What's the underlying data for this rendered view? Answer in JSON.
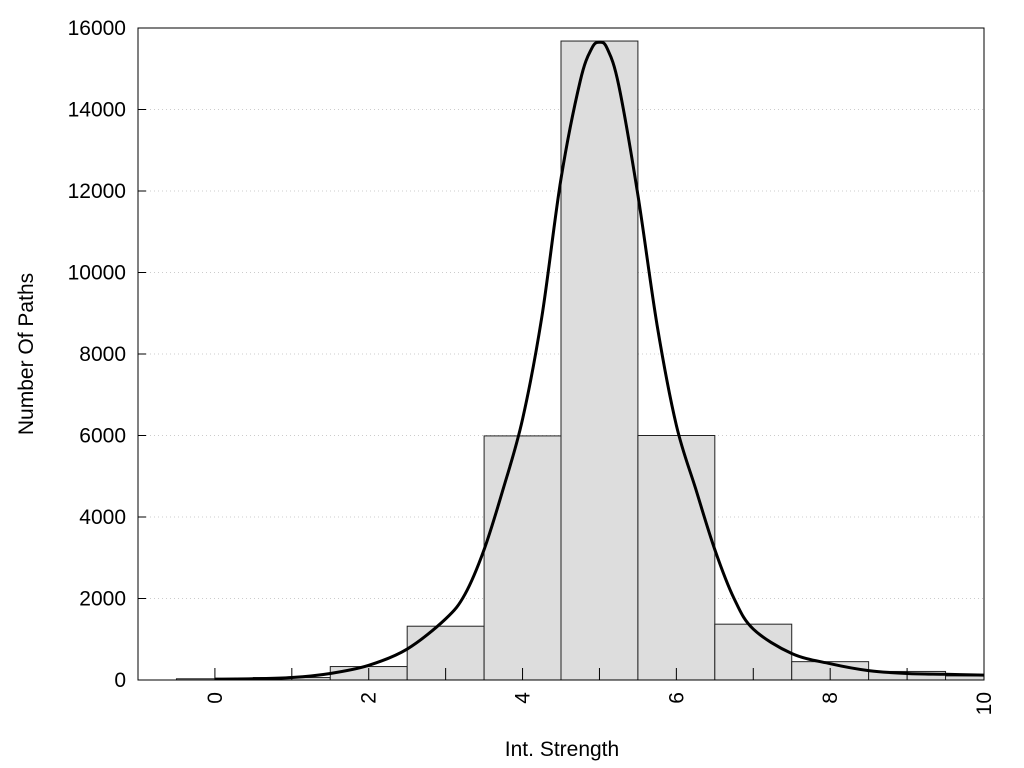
{
  "chart_data": {
    "type": "bar",
    "title": "",
    "xlabel": "Int. Strength",
    "ylabel": "Number Of Paths",
    "xlim": [
      -1,
      10
    ],
    "ylim": [
      0,
      16000
    ],
    "x_ticks": [
      0,
      2,
      4,
      6,
      8,
      10
    ],
    "y_ticks": [
      0,
      2000,
      4000,
      6000,
      8000,
      10000,
      12000,
      14000,
      16000
    ],
    "grid": "horizontal dotted",
    "colors": {
      "bar_fill": "#dddddd",
      "bar_stroke": "#222222",
      "curve": "#000000"
    },
    "series": [
      {
        "type": "bar",
        "x": [
          0,
          1,
          2,
          3,
          4,
          5,
          6,
          7,
          8,
          9,
          10
        ],
        "values": [
          30,
          60,
          330,
          1320,
          5990,
          15680,
          6000,
          1370,
          450,
          210,
          100
        ],
        "bar_width": 1
      },
      {
        "type": "line",
        "x": [
          0,
          0.5,
          1,
          1.5,
          2,
          2.5,
          3,
          3.25,
          3.5,
          3.75,
          4,
          4.25,
          4.5,
          4.75,
          4.9,
          5,
          5.1,
          5.25,
          5.5,
          5.75,
          6,
          6.25,
          6.5,
          6.75,
          7,
          7.5,
          8,
          8.5,
          9,
          9.5,
          10
        ],
        "values": [
          20,
          30,
          60,
          160,
          360,
          760,
          1500,
          2100,
          3200,
          4700,
          6400,
          8900,
          12300,
          14700,
          15500,
          15650,
          15500,
          14600,
          11900,
          8700,
          6250,
          4700,
          3200,
          2000,
          1250,
          650,
          400,
          230,
          160,
          140,
          120
        ]
      }
    ]
  }
}
